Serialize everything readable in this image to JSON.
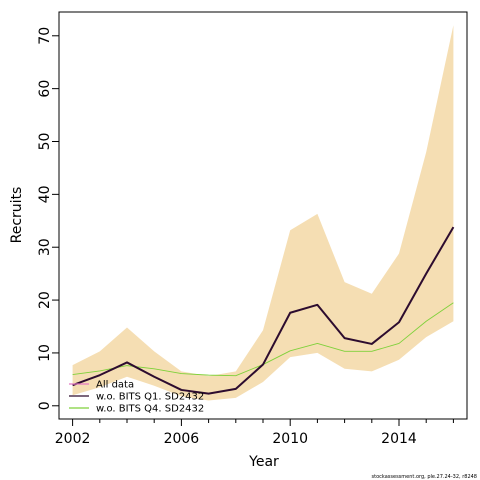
{
  "chart_data": {
    "type": "line",
    "xlabel": "Year",
    "ylabel": "Recruits",
    "xlim": [
      2001.5,
      2016.5
    ],
    "ylim": [
      -2.5,
      74.5
    ],
    "x_ticks": [
      2002,
      2006,
      2010,
      2014
    ],
    "x_minor_ticks": [
      2002,
      2003,
      2004,
      2005,
      2006,
      2007,
      2008,
      2009,
      2010,
      2011,
      2012,
      2013,
      2014,
      2015,
      2016
    ],
    "y_ticks": [
      0,
      10,
      20,
      30,
      40,
      50,
      60,
      70
    ],
    "x": [
      2002,
      2003,
      2004,
      2005,
      2006,
      2007,
      2008,
      2009,
      2010,
      2011,
      2012,
      2013,
      2014,
      2015,
      2016
    ],
    "band": {
      "color": "#f5deb3",
      "lower": [
        2.0,
        3.5,
        5.5,
        3.8,
        1.8,
        1.0,
        1.5,
        4.5,
        9.2,
        10.0,
        7.0,
        6.5,
        8.7,
        13.0,
        16.0
      ],
      "upper": [
        7.7,
        10.3,
        14.8,
        10.3,
        6.5,
        5.6,
        6.5,
        14.3,
        33.2,
        36.3,
        23.4,
        21.2,
        28.8,
        48.0,
        72.0
      ]
    },
    "series": [
      {
        "name": "All data",
        "color": "#e377c2",
        "values": [
          3.9,
          5.8,
          8.2,
          5.5,
          3.0,
          2.3,
          3.2,
          7.8,
          17.6,
          19.1,
          12.8,
          11.7,
          15.8,
          25.0,
          33.8
        ]
      },
      {
        "name": "w.o. BITS Q1. SD2432",
        "color": "#2d0c2f",
        "values": [
          3.9,
          5.8,
          8.2,
          5.5,
          3.0,
          2.3,
          3.2,
          7.8,
          17.6,
          19.1,
          12.8,
          11.7,
          15.8,
          25.0,
          33.8
        ]
      },
      {
        "name": "w.o. BITS Q4. SD2432",
        "color": "#7fd13b",
        "values": [
          5.9,
          6.6,
          7.6,
          7.0,
          6.1,
          5.8,
          5.7,
          7.8,
          10.4,
          11.8,
          10.3,
          10.3,
          11.8,
          16.0,
          19.5
        ]
      }
    ],
    "legend_placement": "bottom-left",
    "grid": false
  },
  "credit": "stockassessment.org, ple.27.24-32, r8248"
}
